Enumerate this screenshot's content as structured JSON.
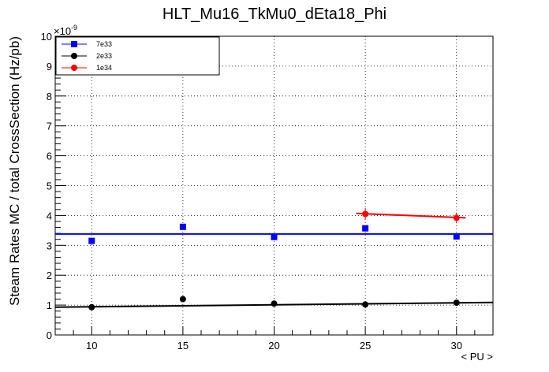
{
  "chart_data": {
    "type": "scatter",
    "title": "HLT_Mu16_TkMu0_dEta18_Phi",
    "xlabel": "< PU >",
    "ylabel": "Steam Rates MC / total CrossSection (Hz/pb)",
    "y_exponent_label": "×10",
    "y_exponent_power": "-9",
    "xlim": [
      8,
      32
    ],
    "ylim": [
      0,
      10
    ],
    "x_ticks": [
      10,
      15,
      20,
      25,
      30
    ],
    "x_tick_labels": [
      "10",
      "15",
      "20",
      "25",
      "30"
    ],
    "y_ticks": [
      0,
      1,
      2,
      3,
      4,
      5,
      6,
      7,
      8,
      9,
      10
    ],
    "y_tick_labels": [
      "0",
      "1",
      "2",
      "3",
      "4",
      "5",
      "6",
      "7",
      "8",
      "9",
      "10"
    ],
    "grid": true,
    "legend_position": "top-left",
    "series": [
      {
        "name": "7e33",
        "color": "#0000ff",
        "marker": "square",
        "x": [
          10,
          15,
          20,
          25,
          30
        ],
        "y": [
          3.15,
          3.62,
          3.28,
          3.57,
          3.3
        ],
        "err": [
          0.05,
          0.05,
          0.05,
          0.05,
          0.05
        ],
        "fit": {
          "x": [
            8,
            32
          ],
          "y": [
            3.38,
            3.38
          ]
        }
      },
      {
        "name": "2e33",
        "color": "#000000",
        "marker": "circle",
        "x": [
          10,
          15,
          20,
          25,
          30
        ],
        "y": [
          0.93,
          1.2,
          1.05,
          1.02,
          1.08
        ],
        "err": [
          0.04,
          0.04,
          0.04,
          0.04,
          0.04
        ],
        "fit": {
          "x": [
            8,
            32
          ],
          "y": [
            0.93,
            1.09
          ]
        }
      },
      {
        "name": "1e34",
        "color": "#ff0000",
        "marker": "circle",
        "x": [
          25,
          30
        ],
        "y": [
          4.05,
          3.92
        ],
        "err": [
          0.2,
          0.18
        ],
        "fit": {
          "x": [
            24.5,
            30.5
          ],
          "y": [
            4.07,
            3.92
          ]
        }
      }
    ]
  }
}
